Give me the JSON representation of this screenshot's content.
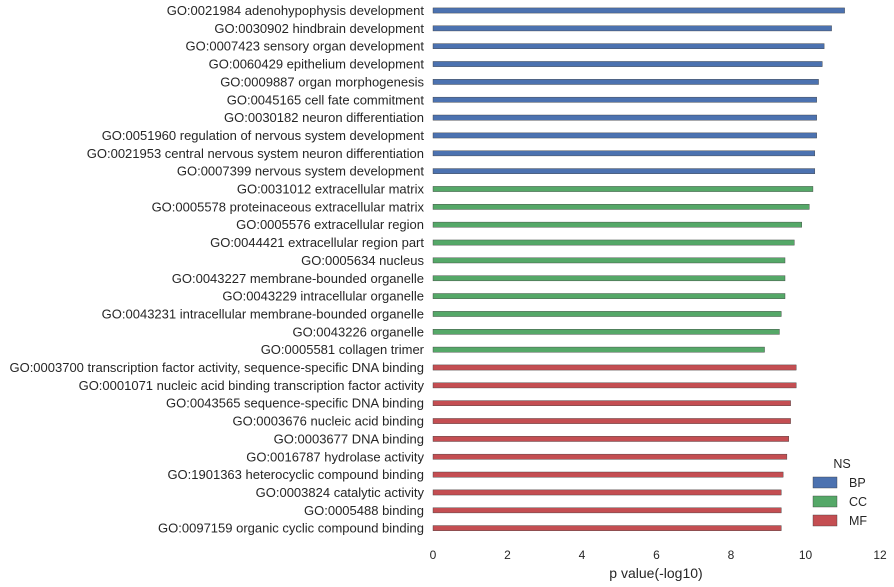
{
  "chart_data": {
    "type": "bar",
    "orientation": "horizontal",
    "xlabel": "p value(-log10)",
    "xlim": [
      0,
      12
    ],
    "xticks": [
      "0",
      "2",
      "4",
      "6",
      "8",
      "10",
      "12"
    ],
    "grid": false,
    "legend": {
      "title": "NS",
      "position": "bottom-right",
      "entries": [
        {
          "name": "BP",
          "color": "#4c72b0"
        },
        {
          "name": "CC",
          "color": "#55a868"
        },
        {
          "name": "MF",
          "color": "#c44e52"
        }
      ]
    },
    "bars": [
      {
        "label": "GO:0021984 adenohypophysis development",
        "value": 11.05,
        "group": "BP"
      },
      {
        "label": "GO:0030902 hindbrain development",
        "value": 10.7,
        "group": "BP"
      },
      {
        "label": "GO:0007423 sensory organ development",
        "value": 10.5,
        "group": "BP"
      },
      {
        "label": "GO:0060429 epithelium development",
        "value": 10.45,
        "group": "BP"
      },
      {
        "label": "GO:0009887 organ morphogenesis",
        "value": 10.35,
        "group": "BP"
      },
      {
        "label": "GO:0045165 cell fate commitment",
        "value": 10.3,
        "group": "BP"
      },
      {
        "label": "GO:0030182 neuron differentiation",
        "value": 10.3,
        "group": "BP"
      },
      {
        "label": "GO:0051960 regulation of nervous system development",
        "value": 10.3,
        "group": "BP"
      },
      {
        "label": "GO:0021953 central nervous system neuron differentiation",
        "value": 10.25,
        "group": "BP"
      },
      {
        "label": "GO:0007399 nervous system development",
        "value": 10.25,
        "group": "BP"
      },
      {
        "label": "GO:0031012 extracellular matrix",
        "value": 10.2,
        "group": "CC"
      },
      {
        "label": "GO:0005578 proteinaceous extracellular matrix",
        "value": 10.1,
        "group": "CC"
      },
      {
        "label": "GO:0005576 extracellular region",
        "value": 9.9,
        "group": "CC"
      },
      {
        "label": "GO:0044421 extracellular region part",
        "value": 9.7,
        "group": "CC"
      },
      {
        "label": "GO:0005634 nucleus",
        "value": 9.45,
        "group": "CC"
      },
      {
        "label": "GO:0043227 membrane-bounded organelle",
        "value": 9.45,
        "group": "CC"
      },
      {
        "label": "GO:0043229 intracellular organelle",
        "value": 9.45,
        "group": "CC"
      },
      {
        "label": "GO:0043231 intracellular membrane-bounded organelle",
        "value": 9.35,
        "group": "CC"
      },
      {
        "label": "GO:0043226 organelle",
        "value": 9.3,
        "group": "CC"
      },
      {
        "label": "GO:0005581 collagen trimer",
        "value": 8.9,
        "group": "CC"
      },
      {
        "label": "GO:0003700 transcription factor activity, sequence-specific DNA binding",
        "value": 9.75,
        "group": "MF"
      },
      {
        "label": "GO:0001071 nucleic acid binding transcription factor activity",
        "value": 9.75,
        "group": "MF"
      },
      {
        "label": "GO:0043565 sequence-specific DNA binding",
        "value": 9.6,
        "group": "MF"
      },
      {
        "label": "GO:0003676 nucleic acid binding",
        "value": 9.6,
        "group": "MF"
      },
      {
        "label": "GO:0003677 DNA binding",
        "value": 9.55,
        "group": "MF"
      },
      {
        "label": "GO:0016787 hydrolase activity",
        "value": 9.5,
        "group": "MF"
      },
      {
        "label": "GO:1901363 heterocyclic compound binding",
        "value": 9.4,
        "group": "MF"
      },
      {
        "label": "GO:0003824 catalytic activity",
        "value": 9.35,
        "group": "MF"
      },
      {
        "label": "GO:0005488 binding",
        "value": 9.35,
        "group": "MF"
      },
      {
        "label": "GO:0097159 organic cyclic compound binding",
        "value": 9.35,
        "group": "MF"
      }
    ]
  }
}
